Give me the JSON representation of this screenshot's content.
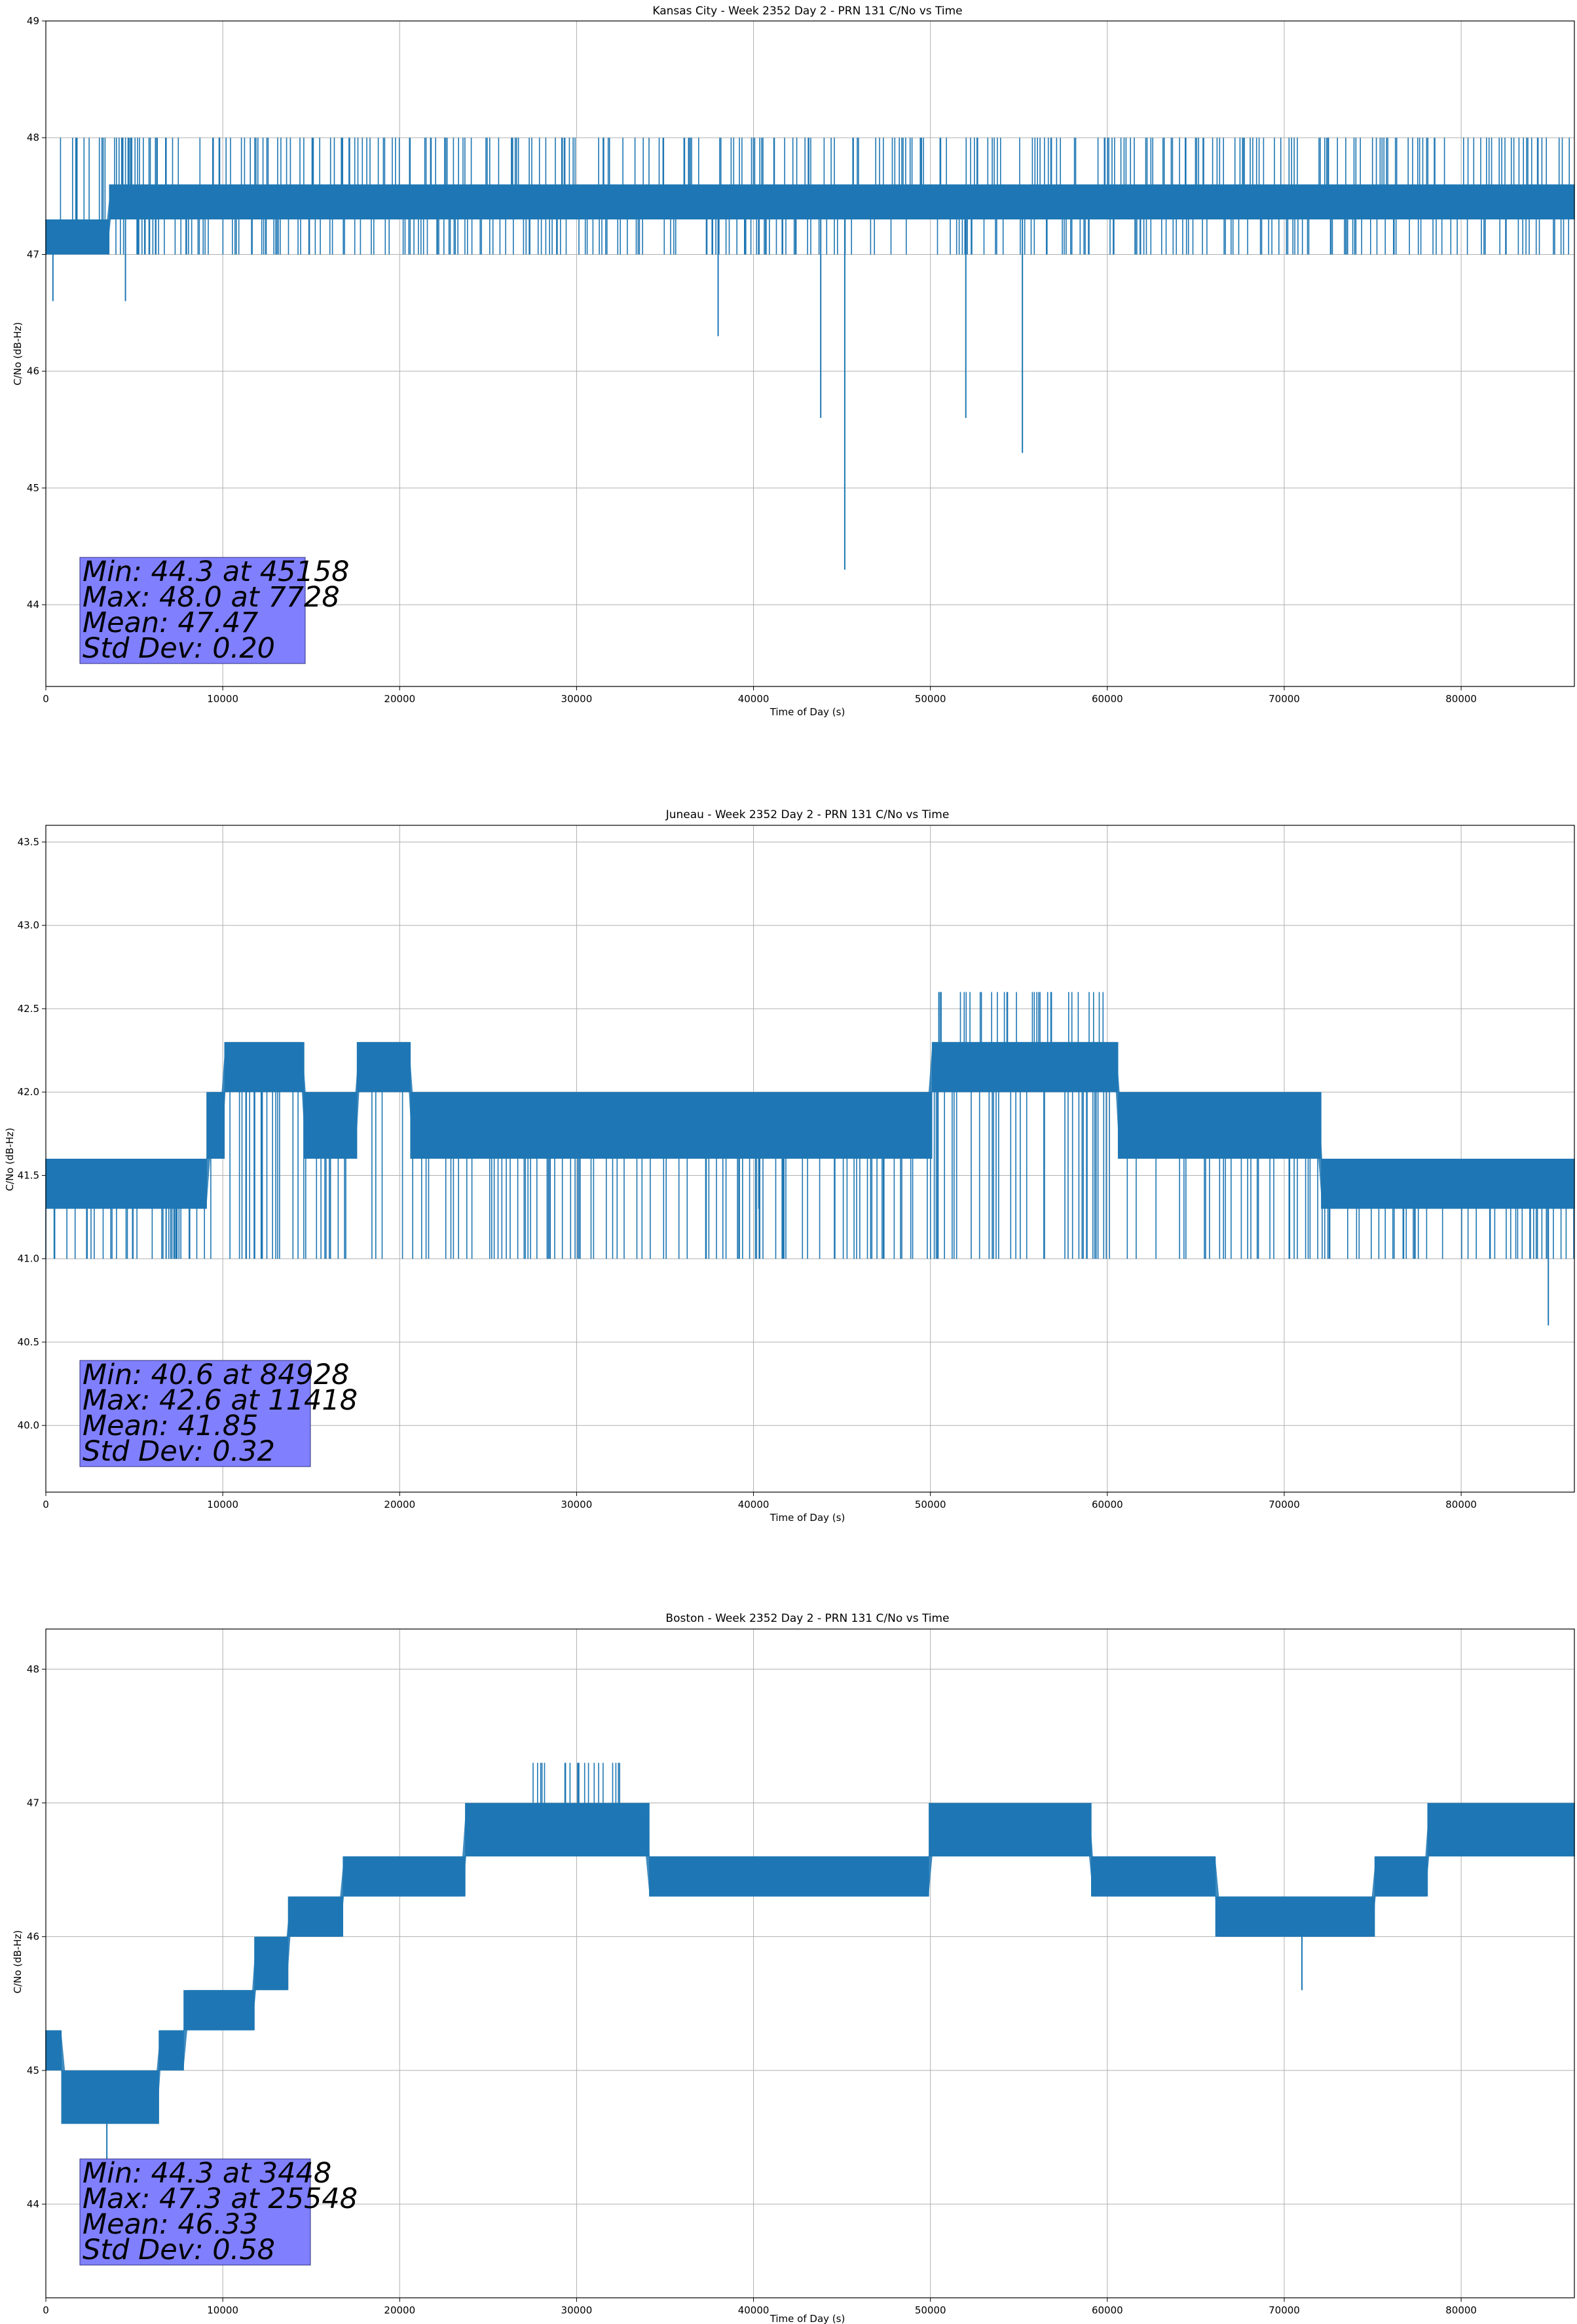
{
  "chart_data": [
    {
      "type": "line",
      "title": "Kansas City - Week 2352 Day 2 - PRN 131 C/No vs Time",
      "xlabel": "Time of Day (s)",
      "ylabel": "C/No (dB-Hz)",
      "xlim": [
        0,
        86400
      ],
      "ylim": [
        43.3,
        49
      ],
      "xticks": [
        0,
        10000,
        20000,
        30000,
        40000,
        50000,
        60000,
        70000,
        80000
      ],
      "yticks": [
        44,
        45,
        46,
        47,
        48,
        49
      ],
      "ytick_labels": [
        "44",
        "45",
        "46",
        "47",
        "48",
        "49"
      ],
      "grid": true,
      "color": "#1f77b4",
      "series": [
        {
          "name": "C/No",
          "trend": [
            [
              0,
              47.15
            ],
            [
              10000,
              47.45
            ],
            [
              20000,
              47.45
            ],
            [
              30000,
              47.45
            ],
            [
              40000,
              47.45
            ],
            [
              50000,
              47.45
            ],
            [
              60000,
              47.45
            ],
            [
              70000,
              47.45
            ],
            [
              80000,
              47.45
            ],
            [
              86400,
              47.45
            ]
          ],
          "band": [
            [
              0,
              47.0,
              47.3
            ],
            [
              3500,
              47.0,
              47.3
            ],
            [
              3600,
              47.3,
              47.6
            ],
            [
              86400,
              47.3,
              47.6
            ]
          ],
          "lower_excursions": [
            [
              0,
              47.0,
              47.3
            ],
            [
              86400,
              47.0,
              47.3
            ]
          ],
          "upper_excursions": [
            [
              0,
              47.6,
              48.0
            ],
            [
              86400,
              47.6,
              48.0
            ]
          ],
          "dips": [
            [
              400,
              46.6
            ],
            [
              4500,
              46.6
            ],
            [
              38000,
              46.3
            ],
            [
              43800,
              45.6
            ],
            [
              45158,
              44.3
            ],
            [
              52000,
              45.6
            ],
            [
              55200,
              45.3
            ]
          ],
          "min": {
            "x": 45158,
            "y": 44.3
          },
          "max": {
            "x": 7728,
            "y": 48.0
          }
        }
      ],
      "stats": [
        "Min: 44.3 at 45158",
        "Max: 48.0 at 7728",
        "Mean: 47.47",
        "Std Dev: 0.20"
      ]
    },
    {
      "type": "line",
      "title": "Juneau - Week 2352 Day 2 - PRN 131 C/No vs Time",
      "xlabel": "Time of Day (s)",
      "ylabel": "C/No (dB-Hz)",
      "xlim": [
        0,
        86400
      ],
      "ylim": [
        39.6,
        43.6
      ],
      "xticks": [
        0,
        10000,
        20000,
        30000,
        40000,
        50000,
        60000,
        70000,
        80000
      ],
      "yticks": [
        40.0,
        40.5,
        41.0,
        41.5,
        42.0,
        42.5,
        43.0,
        43.5
      ],
      "ytick_labels": [
        "40.0",
        "40.5",
        "41.0",
        "41.5",
        "42.0",
        "42.5",
        "43.0",
        "43.5"
      ],
      "grid": true,
      "color": "#1f77b4",
      "series": [
        {
          "name": "C/No",
          "band": [
            [
              0,
              41.3,
              41.6
            ],
            [
              9000,
              41.3,
              41.6
            ],
            [
              9100,
              41.6,
              42.0
            ],
            [
              10000,
              41.6,
              42.0
            ],
            [
              10100,
              42.0,
              42.3
            ],
            [
              14500,
              42.0,
              42.3
            ],
            [
              14600,
              41.6,
              42.0
            ],
            [
              17500,
              41.6,
              42.0
            ],
            [
              17600,
              42.0,
              42.3
            ],
            [
              20500,
              42.0,
              42.3
            ],
            [
              20600,
              41.6,
              42.0
            ],
            [
              50000,
              41.6,
              42.0
            ],
            [
              50100,
              42.0,
              42.3
            ],
            [
              60500,
              42.0,
              42.3
            ],
            [
              60600,
              41.6,
              42.0
            ],
            [
              72000,
              41.6,
              42.0
            ],
            [
              72100,
              41.3,
              41.6
            ],
            [
              86400,
              41.3,
              41.6
            ]
          ],
          "lower_excursions": [
            [
              0,
              41.0,
              41.3
            ],
            [
              86400,
              41.0,
              41.3
            ]
          ],
          "upper_excursions": [
            [
              50000,
              42.3,
              42.6
            ],
            [
              60000,
              42.3,
              42.6
            ]
          ],
          "dips": [
            [
              84928,
              40.6
            ],
            [
              6800,
              41.0
            ],
            [
              40300,
              41.3
            ]
          ],
          "min": {
            "x": 84928,
            "y": 40.6
          },
          "max": {
            "x": 11418,
            "y": 42.6
          }
        }
      ],
      "stats": [
        "Min: 40.6 at 84928",
        "Max: 42.6 at 11418",
        "Mean: 41.85",
        "Std Dev: 0.32"
      ]
    },
    {
      "type": "line",
      "title": "Boston - Week 2352 Day 2 - PRN 131 C/No vs Time",
      "xlabel": "Time of Day (s)",
      "ylabel": "C/No (dB-Hz)",
      "xlim": [
        0,
        86400
      ],
      "ylim": [
        43.3,
        48.3
      ],
      "xticks": [
        0,
        10000,
        20000,
        30000,
        40000,
        50000,
        60000,
        70000,
        80000
      ],
      "yticks": [
        44,
        45,
        46,
        47,
        48
      ],
      "ytick_labels": [
        "44",
        "45",
        "46",
        "47",
        "48"
      ],
      "grid": true,
      "color": "#1f77b4",
      "series": [
        {
          "name": "C/No",
          "band": [
            [
              0,
              45.0,
              45.3
            ],
            [
              800,
              45.0,
              45.3
            ],
            [
              900,
              44.6,
              45.0
            ],
            [
              6300,
              44.6,
              45.0
            ],
            [
              6400,
              45.0,
              45.3
            ],
            [
              7700,
              45.0,
              45.3
            ],
            [
              7800,
              45.3,
              45.6
            ],
            [
              11700,
              45.3,
              45.6
            ],
            [
              11800,
              45.6,
              46.0
            ],
            [
              13600,
              45.6,
              46.0
            ],
            [
              13700,
              46.0,
              46.3
            ],
            [
              16700,
              46.0,
              46.3
            ],
            [
              16800,
              46.3,
              46.6
            ],
            [
              23600,
              46.3,
              46.6
            ],
            [
              23700,
              46.6,
              47.0
            ],
            [
              34000,
              46.6,
              47.0
            ],
            [
              34100,
              46.3,
              46.6
            ],
            [
              49800,
              46.3,
              46.6
            ],
            [
              49900,
              46.6,
              47.0
            ],
            [
              59000,
              46.6,
              47.0
            ],
            [
              59100,
              46.3,
              46.6
            ],
            [
              66000,
              46.3,
              46.6
            ],
            [
              66100,
              46.0,
              46.3
            ],
            [
              75000,
              46.0,
              46.3
            ],
            [
              75100,
              46.3,
              46.6
            ],
            [
              78000,
              46.3,
              46.6
            ],
            [
              78100,
              46.6,
              47.0
            ],
            [
              86400,
              46.6,
              47.0
            ]
          ],
          "lower_excursions": [],
          "upper_excursions": [
            [
              27500,
              47.0,
              47.3
            ],
            [
              32500,
              47.0,
              47.3
            ]
          ],
          "dips": [
            [
              3448,
              44.3
            ],
            [
              71000,
              45.6
            ]
          ],
          "min": {
            "x": 3448,
            "y": 44.3
          },
          "max": {
            "x": 25548,
            "y": 47.3
          }
        }
      ],
      "stats": [
        "Min: 44.3 at 3448",
        "Max: 47.3 at 25548",
        "Mean: 46.33",
        "Std Dev: 0.58"
      ]
    }
  ]
}
